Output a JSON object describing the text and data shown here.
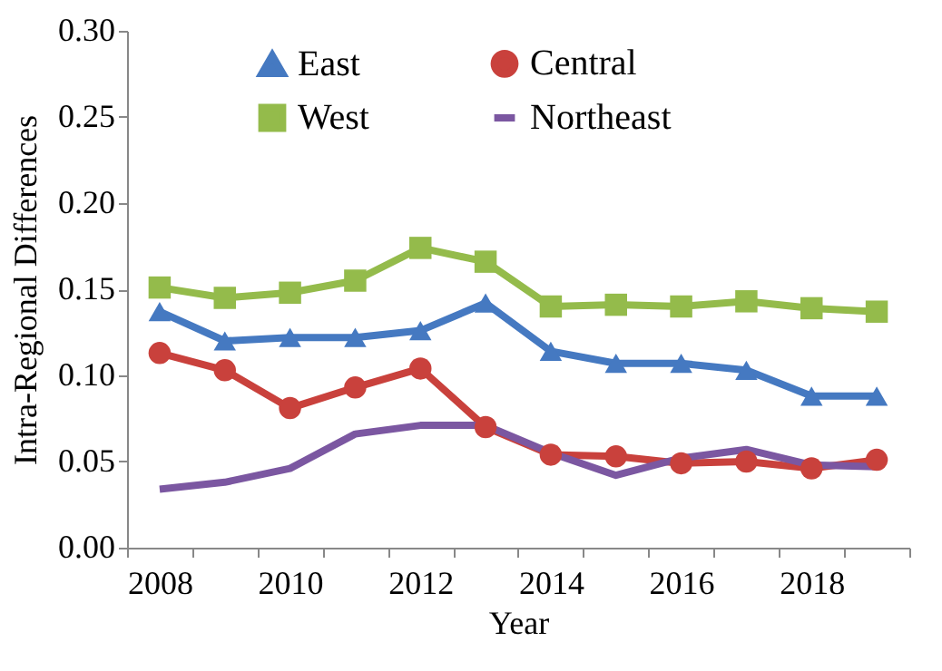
{
  "chart_data": {
    "type": "line",
    "xlabel": "Year",
    "ylabel": "Intra-Regional Differences",
    "categories": [
      "2008",
      null,
      "2010",
      null,
      "2012",
      null,
      "2014",
      null,
      "2016",
      null,
      "2018",
      null
    ],
    "series": [
      {
        "name": "East",
        "color": "#4579c1",
        "marker": "triangle",
        "values": [
          0.137,
          0.12,
          0.122,
          0.122,
          0.126,
          0.142,
          0.114,
          0.107,
          0.107,
          0.103,
          0.088,
          0.088
        ]
      },
      {
        "name": "Central",
        "color": "#c9413c",
        "marker": "circle",
        "values": [
          0.113,
          0.103,
          0.081,
          0.093,
          0.104,
          0.07,
          0.054,
          0.053,
          0.049,
          0.05,
          0.046,
          0.051
        ]
      },
      {
        "name": "West",
        "color": "#94bb4b",
        "marker": "square",
        "values": [
          0.151,
          0.145,
          0.148,
          0.155,
          0.174,
          0.166,
          0.14,
          0.141,
          0.14,
          0.143,
          0.139,
          0.137
        ]
      },
      {
        "name": "Northeast",
        "color": "#7b57a1",
        "marker": "none",
        "values": [
          0.034,
          0.038,
          0.046,
          0.066,
          0.071,
          0.071,
          0.055,
          0.042,
          0.052,
          0.057,
          0.048,
          0.047
        ]
      }
    ],
    "ylim": [
      0,
      0.3
    ],
    "yticks": [
      {
        "value": 0,
        "label": "0.00"
      },
      {
        "value": 0.05,
        "label": "0.05"
      },
      {
        "value": 0.1,
        "label": "0.10"
      },
      {
        "value": 0.15,
        "label": "0.15"
      },
      {
        "value": 0.2,
        "label": "0.20"
      },
      {
        "value": 0.25,
        "label": "0.25"
      },
      {
        "value": 0.3,
        "label": "0.30"
      }
    ],
    "grid": false,
    "legend": "top",
    "line_style": "solid"
  }
}
